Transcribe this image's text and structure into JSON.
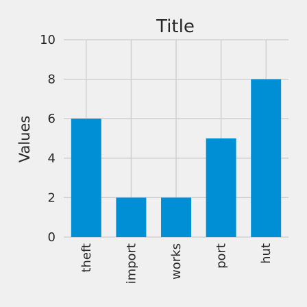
{
  "chart_data": {
    "type": "bar",
    "title": "Title",
    "xlabel": "",
    "ylabel": "Values",
    "categories": [
      "theft",
      "import",
      "works",
      "port",
      "hut"
    ],
    "values": [
      6,
      2,
      2,
      5,
      8
    ],
    "ylim": [
      0,
      10
    ],
    "yticks": [
      "0",
      "2",
      "4",
      "6",
      "8",
      "10"
    ],
    "grid": true,
    "bar_color": "#008fd5",
    "background_color": "#f0f0f0",
    "grid_color": "#cbcbcb"
  }
}
